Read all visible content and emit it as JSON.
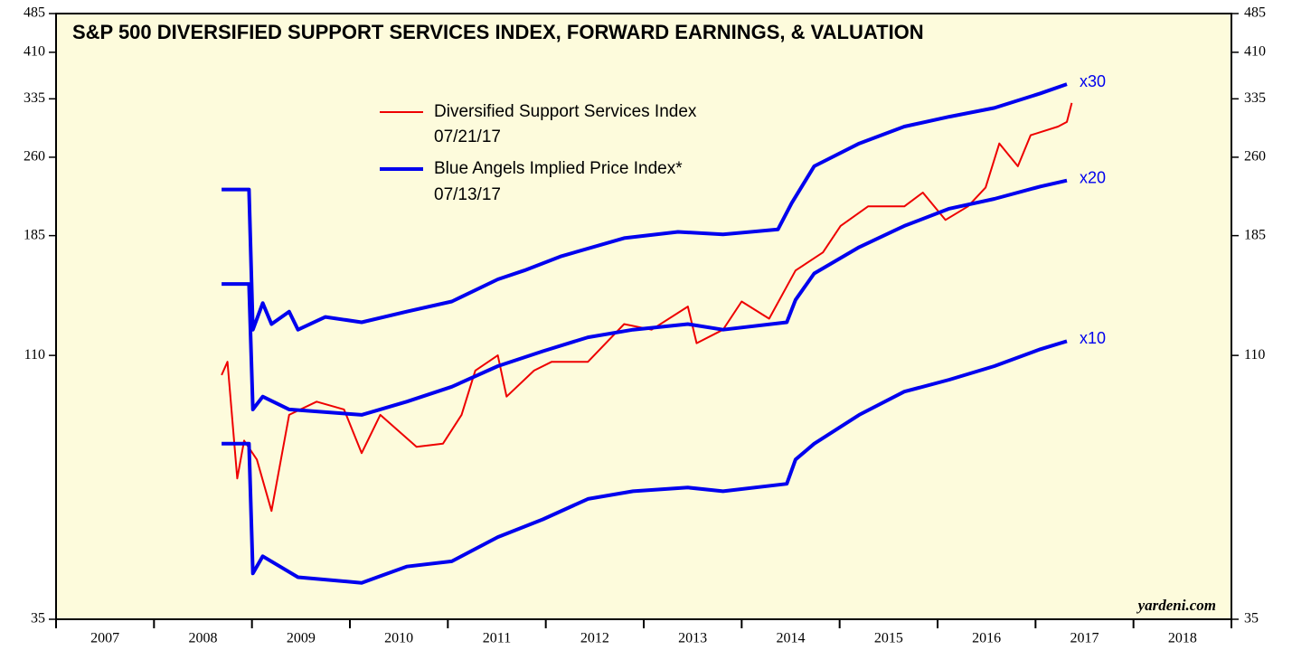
{
  "chart_data": {
    "type": "line",
    "title": "S&P 500 DIVERSIFIED SUPPORT SERVICES INDEX, FORWARD EARNINGS, & VALUATION",
    "log_scale": true,
    "ylim": [
      35,
      485
    ],
    "yticks": [
      35,
      110,
      185,
      260,
      335,
      410,
      485
    ],
    "xlim": [
      2007,
      2019
    ],
    "xticks": [
      2007,
      2008,
      2009,
      2010,
      2011,
      2012,
      2013,
      2014,
      2015,
      2016,
      2017,
      2018,
      2019
    ],
    "year_labels": [
      2007,
      2008,
      2009,
      2010,
      2011,
      2012,
      2013,
      2014,
      2015,
      2016,
      2017,
      2018
    ],
    "background": "#fdfbdc",
    "source": "yardeni.com",
    "blue_legend": {
      "name": "Blue Angels Implied Price Index*",
      "date": "07/13/17",
      "color": "#0000ee"
    },
    "series": [
      {
        "name": "Diversified Support Services Index",
        "date": "07/21/17",
        "color": "#ee0000",
        "width": 2,
        "x": [
          2008.69,
          2008.75,
          2008.85,
          2008.92,
          2009.05,
          2009.2,
          2009.38,
          2009.66,
          2009.94,
          2010.12,
          2010.31,
          2010.68,
          2010.95,
          2011.14,
          2011.28,
          2011.51,
          2011.6,
          2011.88,
          2012.06,
          2012.43,
          2012.8,
          2013.08,
          2013.45,
          2013.54,
          2013.81,
          2014.0,
          2014.28,
          2014.55,
          2014.83,
          2015.01,
          2015.29,
          2015.66,
          2015.85,
          2016.08,
          2016.31,
          2016.49,
          2016.63,
          2016.82,
          2016.95,
          2017.23,
          2017.32,
          2017.37
        ],
        "values": [
          101,
          107,
          64.5,
          76,
          70,
          56,
          85,
          90,
          87,
          72,
          85,
          74,
          75,
          85,
          103,
          110,
          92,
          103,
          107,
          107,
          126,
          123,
          136,
          116,
          123,
          139,
          129,
          159,
          172,
          193,
          210,
          210,
          223,
          198,
          210,
          228,
          276,
          250,
          286,
          297,
          303,
          329
        ]
      },
      {
        "name": "x30",
        "color": "#0000ee",
        "width": 4,
        "x": [
          2008.69,
          2008.97,
          2009.01,
          2009.11,
          2009.2,
          2009.38,
          2009.47,
          2009.75,
          2010.12,
          2010.58,
          2011.04,
          2011.51,
          2011.78,
          2012.15,
          2012.8,
          2013.35,
          2013.81,
          2014.37,
          2014.51,
          2014.74,
          2015.2,
          2015.66,
          2016.12,
          2016.58,
          2017.05,
          2017.32
        ],
        "values": [
          226,
          226,
          123,
          138,
          126,
          133,
          123,
          130,
          127,
          133,
          139,
          153,
          159,
          169,
          183,
          188,
          186,
          190,
          213,
          250,
          276,
          297,
          310,
          322,
          343,
          357
        ]
      },
      {
        "name": "x20",
        "color": "#0000ee",
        "width": 4,
        "x": [
          2008.69,
          2008.97,
          2009.01,
          2009.11,
          2009.38,
          2010.12,
          2010.58,
          2011.04,
          2011.51,
          2011.97,
          2012.43,
          2012.89,
          2013.45,
          2013.81,
          2014.46,
          2014.55,
          2014.74,
          2015.2,
          2015.66,
          2016.12,
          2016.58,
          2017.05,
          2017.32
        ],
        "values": [
          150,
          150,
          87,
          92,
          87,
          85,
          90,
          96,
          105,
          112,
          119,
          123,
          126,
          123,
          127,
          140,
          157,
          176,
          193,
          208,
          217,
          229,
          235
        ]
      },
      {
        "name": "x10",
        "color": "#0000ee",
        "width": 4,
        "x": [
          2008.69,
          2008.97,
          2009.01,
          2009.11,
          2009.47,
          2010.12,
          2010.58,
          2011.04,
          2011.51,
          2011.97,
          2012.43,
          2012.89,
          2013.45,
          2013.81,
          2014.46,
          2014.55,
          2014.74,
          2015.2,
          2015.66,
          2016.12,
          2016.58,
          2017.05,
          2017.32
        ],
        "values": [
          75,
          75,
          42.7,
          46,
          42,
          41,
          44,
          45,
          50,
          54,
          59,
          61,
          62,
          61,
          63,
          70,
          75,
          85,
          94,
          99,
          105,
          113,
          117
        ]
      }
    ]
  }
}
